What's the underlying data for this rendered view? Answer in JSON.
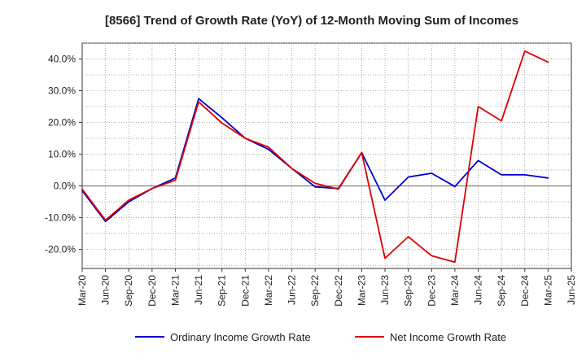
{
  "chart_data": {
    "type": "line",
    "title": "[8566]  Trend of Growth Rate (YoY) of 12-Month Moving Sum of Incomes",
    "xlabel": "",
    "ylabel": "",
    "categories": [
      "Mar-20",
      "Jun-20",
      "Sep-20",
      "Dec-20",
      "Mar-21",
      "Jun-21",
      "Sep-21",
      "Dec-21",
      "Mar-22",
      "Jun-22",
      "Sep-22",
      "Dec-22",
      "Mar-23",
      "Jun-23",
      "Sep-23",
      "Dec-23",
      "Mar-24",
      "Jun-24",
      "Sep-24",
      "Dec-24",
      "Mar-25",
      "Jun-25"
    ],
    "ylim": [
      -26,
      45
    ],
    "yticks": [
      -20,
      -10,
      0,
      10,
      20,
      30,
      40
    ],
    "ytick_labels": [
      "-20.0%",
      "-10.0%",
      "0.0%",
      "10.0%",
      "20.0%",
      "30.0%",
      "40.0%"
    ],
    "grid": true,
    "legend_position": "bottom",
    "series": [
      {
        "name": "Ordinary Income Growth Rate",
        "color": "#0000cc",
        "values": [
          -1.5,
          -11.2,
          -5.0,
          -0.8,
          2.5,
          27.5,
          21.5,
          15.0,
          11.5,
          5.5,
          -0.3,
          -0.8,
          10.5,
          -4.5,
          2.8,
          4.0,
          -0.2,
          8.0,
          3.5,
          3.5,
          2.5,
          null
        ]
      },
      {
        "name": "Net Income Growth Rate",
        "color": "#dd0000",
        "values": [
          -1.0,
          -10.8,
          -4.5,
          -0.8,
          1.8,
          26.5,
          19.8,
          15.0,
          12.2,
          5.5,
          0.8,
          -1.0,
          10.5,
          -22.8,
          -16.0,
          -22.0,
          -24.0,
          25.0,
          20.5,
          42.5,
          39.0,
          null
        ]
      }
    ]
  }
}
